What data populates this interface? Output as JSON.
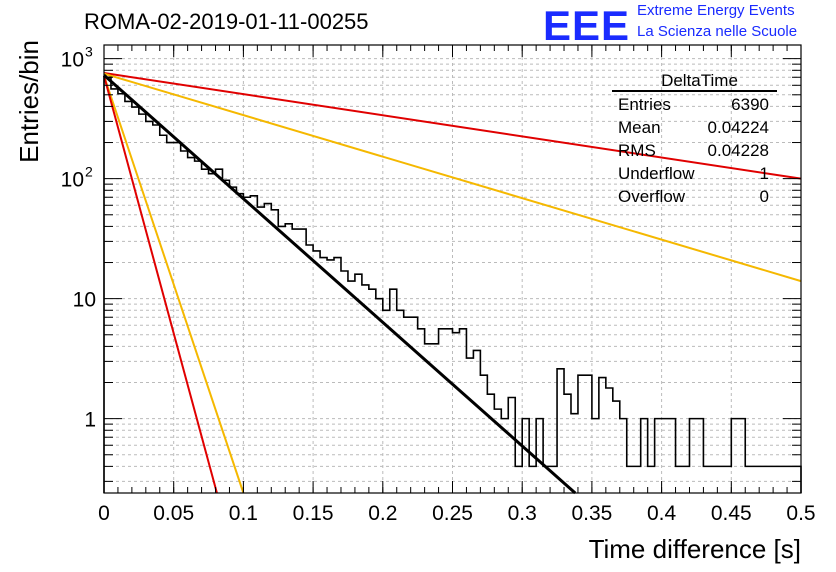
{
  "header": {
    "title": "ROMA-02-2019-01-11-00255",
    "logo_text": "EEE",
    "logo_line1": "Extreme Energy Events",
    "logo_line2": "La Scienza nelle Scuole"
  },
  "stats": {
    "name": "DeltaTime",
    "rows": [
      {
        "label": "Entries",
        "value": "6390"
      },
      {
        "label": "Mean",
        "value": "0.04224"
      },
      {
        "label": "RMS",
        "value": "0.04228"
      },
      {
        "label": "Underflow",
        "value": "1"
      },
      {
        "label": "Overflow",
        "value": "0"
      }
    ]
  },
  "colors": {
    "histogram": "#000000",
    "fit": "#000000",
    "red_lines": "#e00000",
    "orange_lines": "#f5b800",
    "grid": "#bbbbbb",
    "logo": "#1a2bff"
  },
  "chart_data": {
    "type": "line",
    "title": "ROMA-02-2019-01-11-00255",
    "xlabel": "Time difference [s]",
    "ylabel": "Entries/bin",
    "xlim": [
      0,
      0.5
    ],
    "ylim": [
      0.24,
      1300
    ],
    "yscale": "log",
    "grid": true,
    "legend_position": "top-right",
    "x_ticks": [
      "0",
      "0.05",
      "0.1",
      "0.15",
      "0.2",
      "0.25",
      "0.3",
      "0.35",
      "0.4",
      "0.45",
      "0.5"
    ],
    "y_ticks": [
      {
        "value": 1,
        "label": "1"
      },
      {
        "value": 10,
        "label": "10"
      },
      {
        "value": 100,
        "label": "10",
        "sup": "2"
      },
      {
        "value": 1000,
        "label": "10",
        "sup": "3"
      }
    ],
    "series": [
      {
        "kind": "histogram",
        "bin_width": 0.005,
        "x_start": 0,
        "values": [
          700,
          560,
          510,
          440,
          395,
          345,
          300,
          280,
          230,
          200,
          200,
          170,
          150,
          140,
          120,
          110,
          120,
          97,
          85,
          75,
          70,
          72,
          58,
          62,
          55,
          40,
          42,
          38,
          38,
          28,
          25,
          22,
          21,
          22,
          17,
          14,
          16,
          13,
          12,
          10,
          8,
          12,
          8,
          7,
          7,
          5.6,
          4.2,
          4.2,
          5.6,
          5.6,
          5.2,
          5.6,
          3.2,
          3.7,
          2.3,
          1.6,
          1.2,
          1.0,
          1.5,
          0.4,
          1.0,
          0.4,
          1.0,
          0.4,
          0.4,
          2.6,
          1.6,
          1.1,
          2.3,
          2.3,
          1.0,
          2.2,
          1.8,
          1.4,
          1.0,
          0.4,
          0.4,
          1.0,
          0.4,
          1.0,
          1.0,
          1.0,
          0.4,
          0.4,
          1.0,
          1.0,
          0.4,
          0.4,
          0.4,
          0.4,
          1.0,
          1.0,
          0.4,
          0.4,
          0.4,
          0.4,
          0.4,
          0.4,
          0.4,
          0.4
        ]
      },
      {
        "kind": "fit",
        "from": [
          0,
          730
        ],
        "to": [
          0.338,
          0.24
        ]
      },
      {
        "kind": "reference_red",
        "from": [
          0,
          760
        ],
        "to": [
          0.5,
          100
        ]
      },
      {
        "kind": "reference_orange",
        "from": [
          0,
          750
        ],
        "to": [
          0.5,
          14
        ]
      },
      {
        "kind": "reference_orange",
        "from": [
          0,
          720
        ],
        "to": [
          0.1,
          0.24
        ]
      },
      {
        "kind": "reference_red",
        "from": [
          0,
          720
        ],
        "to": [
          0.081,
          0.24
        ]
      }
    ]
  }
}
